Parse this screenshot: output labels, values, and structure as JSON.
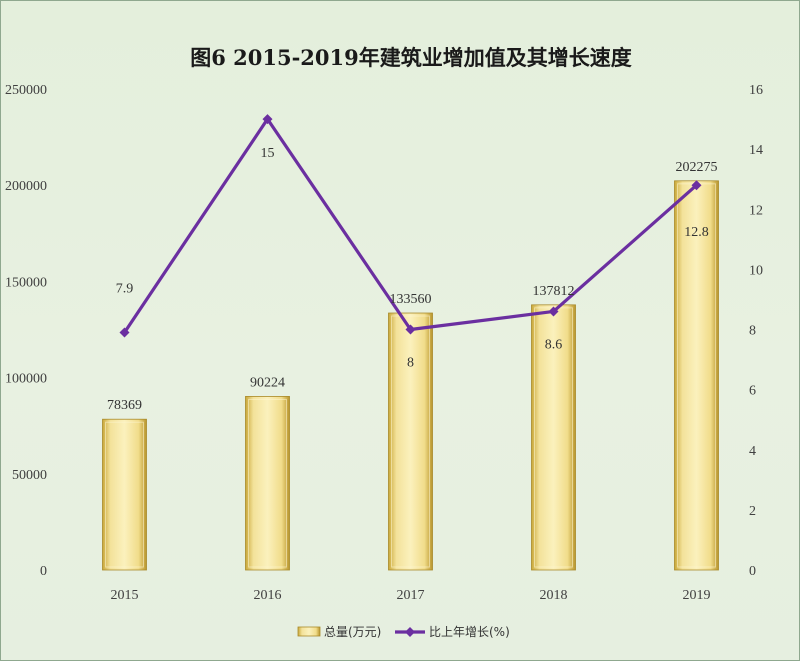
{
  "chart_data": {
    "type": "bar",
    "title": "图6  2015-2019年建筑业增加值及其增长速度",
    "categories": [
      "2015",
      "2016",
      "2017",
      "2018",
      "2019"
    ],
    "series": [
      {
        "name": "总量(万元)",
        "type": "bar",
        "axis": "left",
        "values": [
          78369,
          90224,
          133560,
          137812,
          202275
        ],
        "labels": [
          "78369",
          "90224",
          "133560",
          "137812",
          "202275"
        ],
        "color": "#e8d27a"
      },
      {
        "name": "比上年增长(%)",
        "type": "line",
        "axis": "right",
        "values": [
          7.9,
          15,
          8,
          8.6,
          12.8
        ],
        "labels": [
          "7.9",
          "15",
          "8",
          "8.6",
          "12.8"
        ],
        "color": "#6b2fa0"
      }
    ],
    "y_left": {
      "min": 0,
      "max": 250000,
      "ticks": [
        "0",
        "50000",
        "100000",
        "150000",
        "200000",
        "250000"
      ]
    },
    "y_right": {
      "min": 0,
      "max": 16,
      "ticks": [
        "0",
        "2",
        "4",
        "6",
        "8",
        "10",
        "12",
        "14",
        "16"
      ]
    },
    "grid": false,
    "legend_position": "bottom"
  }
}
